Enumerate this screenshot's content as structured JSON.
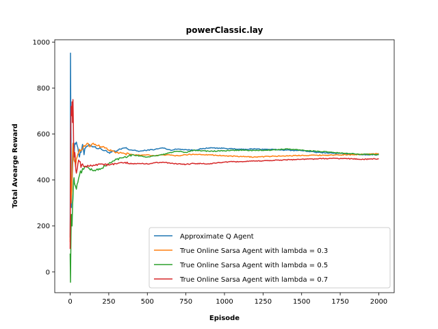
{
  "chart_data": {
    "type": "line",
    "title": "powerClassic.lay",
    "xlabel": "Episode",
    "ylabel": "Total Avearge Reward",
    "xlim": [
      -100,
      2100
    ],
    "ylim": [
      -90,
      1010
    ],
    "xticks": [
      0,
      250,
      500,
      750,
      1000,
      1250,
      1500,
      1750,
      2000
    ],
    "yticks": [
      0,
      200,
      400,
      600,
      800,
      1000
    ],
    "grid": false,
    "legend_position": "lower-right",
    "series": [
      {
        "name": "Approximate Q Agent",
        "color": "#1f77b4",
        "points": [
          [
            0,
            150
          ],
          [
            2,
            952
          ],
          [
            5,
            600
          ],
          [
            8,
            280
          ],
          [
            12,
            380
          ],
          [
            16,
            470
          ],
          [
            20,
            530
          ],
          [
            25,
            500
          ],
          [
            30,
            560
          ],
          [
            40,
            565
          ],
          [
            50,
            540
          ],
          [
            60,
            500
          ],
          [
            70,
            520
          ],
          [
            80,
            555
          ],
          [
            90,
            510
          ],
          [
            100,
            540
          ],
          [
            120,
            555
          ],
          [
            150,
            545
          ],
          [
            200,
            535
          ],
          [
            250,
            520
          ],
          [
            300,
            525
          ],
          [
            350,
            540
          ],
          [
            400,
            530
          ],
          [
            450,
            525
          ],
          [
            500,
            530
          ],
          [
            550,
            533
          ],
          [
            600,
            540
          ],
          [
            650,
            530
          ],
          [
            700,
            535
          ],
          [
            750,
            532
          ],
          [
            800,
            530
          ],
          [
            900,
            540
          ],
          [
            1000,
            538
          ],
          [
            1100,
            533
          ],
          [
            1200,
            535
          ],
          [
            1300,
            533
          ],
          [
            1400,
            530
          ],
          [
            1500,
            528
          ],
          [
            1600,
            520
          ],
          [
            1700,
            517
          ],
          [
            1800,
            513
          ],
          [
            1900,
            510
          ],
          [
            2000,
            510
          ]
        ]
      },
      {
        "name": "True Online Sarsa Agent with lambda = 0.3",
        "color": "#ff7f0e",
        "points": [
          [
            0,
            130
          ],
          [
            3,
            500
          ],
          [
            6,
            300
          ],
          [
            10,
            350
          ],
          [
            14,
            480
          ],
          [
            18,
            560
          ],
          [
            22,
            520
          ],
          [
            28,
            480
          ],
          [
            35,
            460
          ],
          [
            45,
            500
          ],
          [
            55,
            520
          ],
          [
            70,
            530
          ],
          [
            90,
            550
          ],
          [
            110,
            560
          ],
          [
            130,
            545
          ],
          [
            150,
            560
          ],
          [
            180,
            550
          ],
          [
            200,
            545
          ],
          [
            230,
            540
          ],
          [
            250,
            530
          ],
          [
            300,
            520
          ],
          [
            350,
            515
          ],
          [
            400,
            510
          ],
          [
            450,
            508
          ],
          [
            500,
            510
          ],
          [
            550,
            505
          ],
          [
            600,
            510
          ],
          [
            650,
            508
          ],
          [
            700,
            505
          ],
          [
            750,
            510
          ],
          [
            800,
            512
          ],
          [
            900,
            510
          ],
          [
            1000,
            505
          ],
          [
            1100,
            502
          ],
          [
            1200,
            500
          ],
          [
            1300,
            503
          ],
          [
            1400,
            505
          ],
          [
            1500,
            507
          ],
          [
            1600,
            508
          ],
          [
            1700,
            508
          ],
          [
            1800,
            510
          ],
          [
            1900,
            512
          ],
          [
            2000,
            515
          ]
        ]
      },
      {
        "name": "True Online Sarsa Agent with lambda = 0.5",
        "color": "#2ca02c",
        "points": [
          [
            0,
            80
          ],
          [
            2,
            -45
          ],
          [
            5,
            150
          ],
          [
            8,
            250
          ],
          [
            12,
            200
          ],
          [
            16,
            300
          ],
          [
            20,
            360
          ],
          [
            25,
            410
          ],
          [
            30,
            380
          ],
          [
            40,
            360
          ],
          [
            50,
            390
          ],
          [
            60,
            420
          ],
          [
            80,
            450
          ],
          [
            100,
            460
          ],
          [
            150,
            440
          ],
          [
            200,
            450
          ],
          [
            250,
            470
          ],
          [
            300,
            490
          ],
          [
            350,
            500
          ],
          [
            400,
            510
          ],
          [
            450,
            505
          ],
          [
            500,
            500
          ],
          [
            550,
            505
          ],
          [
            600,
            510
          ],
          [
            650,
            520
          ],
          [
            700,
            525
          ],
          [
            750,
            520
          ],
          [
            800,
            530
          ],
          [
            900,
            525
          ],
          [
            1000,
            527
          ],
          [
            1100,
            530
          ],
          [
            1200,
            528
          ],
          [
            1300,
            530
          ],
          [
            1400,
            535
          ],
          [
            1500,
            530
          ],
          [
            1600,
            525
          ],
          [
            1700,
            520
          ],
          [
            1800,
            515
          ],
          [
            1900,
            512
          ],
          [
            2000,
            510
          ]
        ]
      },
      {
        "name": "True Online Sarsa Agent with lambda = 0.7",
        "color": "#d62728",
        "points": [
          [
            0,
            100
          ],
          [
            3,
            600
          ],
          [
            6,
            720
          ],
          [
            9,
            680
          ],
          [
            12,
            740
          ],
          [
            15,
            650
          ],
          [
            18,
            750
          ],
          [
            22,
            560
          ],
          [
            26,
            500
          ],
          [
            30,
            520
          ],
          [
            35,
            460
          ],
          [
            40,
            430
          ],
          [
            50,
            470
          ],
          [
            60,
            480
          ],
          [
            70,
            455
          ],
          [
            80,
            470
          ],
          [
            100,
            460
          ],
          [
            120,
            460
          ],
          [
            150,
            465
          ],
          [
            200,
            470
          ],
          [
            250,
            465
          ],
          [
            300,
            470
          ],
          [
            350,
            475
          ],
          [
            400,
            470
          ],
          [
            450,
            472
          ],
          [
            500,
            470
          ],
          [
            550,
            475
          ],
          [
            600,
            478
          ],
          [
            650,
            472
          ],
          [
            700,
            470
          ],
          [
            750,
            468
          ],
          [
            800,
            472
          ],
          [
            900,
            470
          ],
          [
            1000,
            478
          ],
          [
            1100,
            480
          ],
          [
            1200,
            482
          ],
          [
            1300,
            485
          ],
          [
            1400,
            488
          ],
          [
            1500,
            490
          ],
          [
            1600,
            492
          ],
          [
            1700,
            494
          ],
          [
            1800,
            493
          ],
          [
            1900,
            490
          ],
          [
            2000,
            492
          ]
        ]
      }
    ]
  }
}
